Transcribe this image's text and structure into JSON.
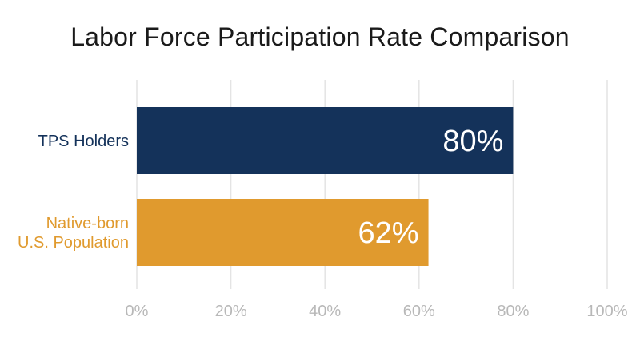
{
  "chart_data": {
    "type": "bar",
    "orientation": "horizontal",
    "title": "Labor Force Participation Rate Comparison",
    "categories": [
      [
        "TPS Holders"
      ],
      [
        "Native-born",
        "U.S. Population"
      ]
    ],
    "values": [
      80,
      62
    ],
    "data_labels": [
      "80%",
      "62%"
    ],
    "colors": [
      "#14325a",
      "#e09a2e"
    ],
    "xlim": [
      0,
      100
    ],
    "xticks": [
      0,
      20,
      40,
      60,
      80,
      100
    ],
    "xtick_labels": [
      "0%",
      "20%",
      "40%",
      "60%",
      "80%",
      "100%"
    ],
    "grid": true,
    "legend": "none"
  }
}
